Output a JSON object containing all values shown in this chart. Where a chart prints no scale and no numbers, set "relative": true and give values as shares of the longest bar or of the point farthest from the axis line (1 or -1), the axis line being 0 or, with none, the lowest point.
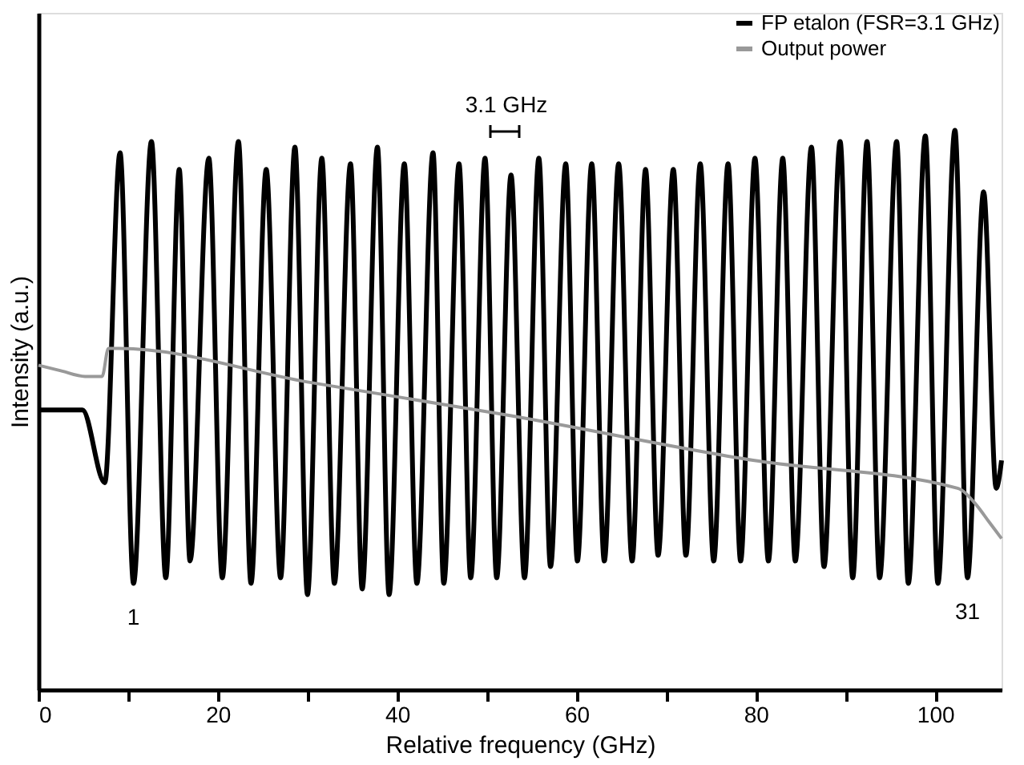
{
  "chart_data": {
    "type": "line",
    "relative": true,
    "xlabel": "Relative frequency (GHz)",
    "ylabel": "Intensity (a.u.)",
    "xlim": [
      0,
      107.4
    ],
    "xticks": [
      0,
      {
        "value": 10,
        "label": null
      },
      20,
      {
        "value": 30,
        "label": null
      },
      40,
      {
        "value": 50,
        "label": null
      },
      60,
      {
        "value": 70,
        "label": null
      },
      80,
      {
        "value": 90,
        "label": null
      },
      100
    ],
    "grid": false,
    "legend": "top right",
    "marker": "none",
    "line_style": "solid",
    "series": [
      {
        "name": "FP etalon (FSR=3.1 GHz)",
        "color": "#000000",
        "x": [
          0,
          4.9,
          7.4,
          9.1,
          10.6,
          12.6,
          14.2,
          15.7,
          16.9,
          19.0,
          20.5,
          22.3,
          23.7,
          25.4,
          27.0,
          28.6,
          30.0,
          31.6,
          33.0,
          34.8,
          36.1,
          37.8,
          39.1,
          40.8,
          42.2,
          44.0,
          45.2,
          46.9,
          48.2,
          49.8,
          51.1,
          52.7,
          54.2,
          55.8,
          57.1,
          58.8,
          60.1,
          61.7,
          63.1,
          64.7,
          66.2,
          67.7,
          69.1,
          70.8,
          72.2,
          73.8,
          75.3,
          76.9,
          78.3,
          79.9,
          81.4,
          83.0,
          84.4,
          86.2,
          87.6,
          89.4,
          90.8,
          92.4,
          93.8,
          95.7,
          97.0,
          98.9,
          100.3,
          102.2,
          103.6,
          105.4,
          106.8,
          107.4
        ],
        "values": [
          0.5,
          0.5,
          0.37,
          0.96,
          0.19,
          0.98,
          0.2,
          0.93,
          0.23,
          0.95,
          0.2,
          0.98,
          0.19,
          0.93,
          0.2,
          0.97,
          0.17,
          0.95,
          0.19,
          0.94,
          0.18,
          0.97,
          0.17,
          0.94,
          0.19,
          0.96,
          0.19,
          0.94,
          0.2,
          0.95,
          0.2,
          0.92,
          0.2,
          0.95,
          0.22,
          0.94,
          0.23,
          0.94,
          0.23,
          0.94,
          0.23,
          0.93,
          0.24,
          0.93,
          0.24,
          0.94,
          0.23,
          0.94,
          0.23,
          0.95,
          0.23,
          0.95,
          0.23,
          0.97,
          0.22,
          0.98,
          0.2,
          0.98,
          0.2,
          0.98,
          0.19,
          0.99,
          0.19,
          1.0,
          0.2,
          0.89,
          0.36,
          0.41
        ]
      },
      {
        "name": "Output power",
        "color": "#999999",
        "x": [
          0,
          2.5,
          5.2,
          7.1,
          7.8,
          9.0,
          30.0,
          52.6,
          79.7,
          102.5,
          104.6,
          106.0,
          107.4
        ],
        "values": [
          0.58,
          0.57,
          0.56,
          0.56,
          0.61,
          0.61,
          0.55,
          0.49,
          0.41,
          0.36,
          0.33,
          0.3,
          0.27
        ]
      }
    ],
    "annotations": [
      {
        "text": "1",
        "x": 10.6,
        "y": 0.19
      },
      {
        "text": "31",
        "x": 103.6,
        "y": 0.2
      },
      "3.1 GHz"
    ]
  }
}
